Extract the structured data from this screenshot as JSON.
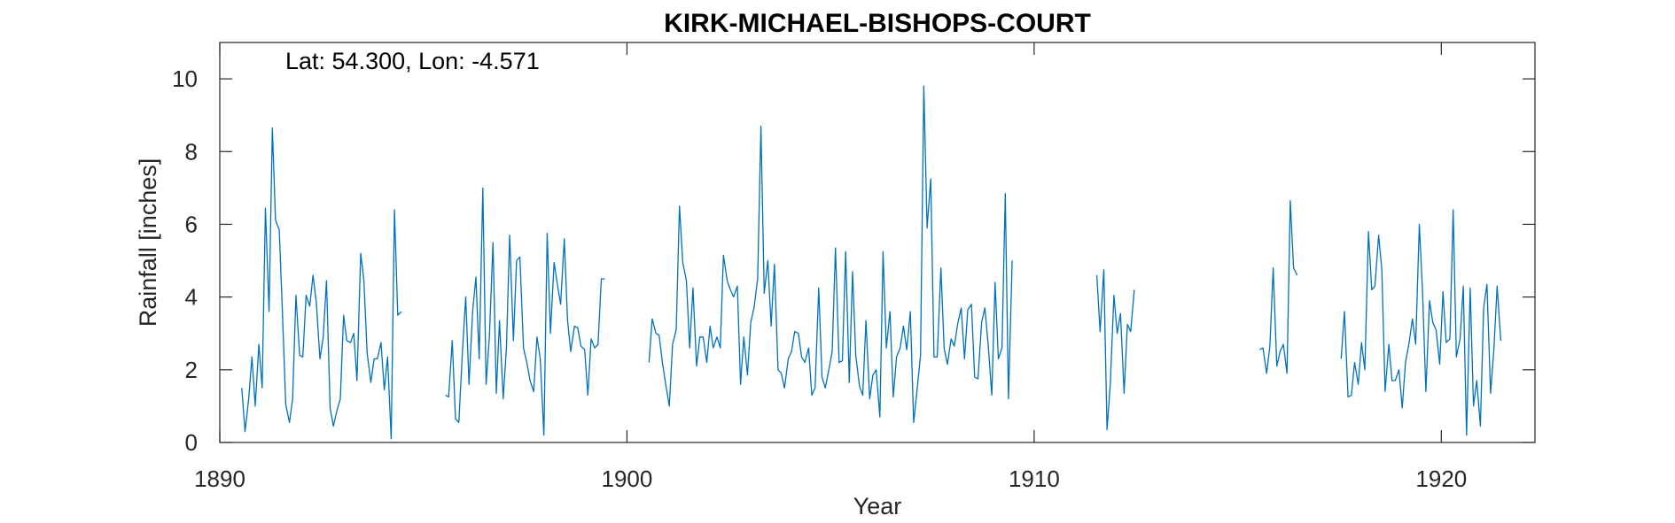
{
  "chart_data": {
    "type": "line",
    "title": "KIRK-MICHAEL-BISHOPS-COURT",
    "xlabel": "Year",
    "ylabel": "Rainfall [inches]",
    "annotation": "Lat: 54.300, Lon: -4.571",
    "xlim": [
      1890,
      1922.3
    ],
    "ylim": [
      0,
      11
    ],
    "xticks": [
      1890,
      1900,
      1910,
      1920
    ],
    "yticks": [
      0,
      2,
      4,
      6,
      8,
      10
    ],
    "grid": false,
    "series_color": "#0072BD",
    "series": [
      {
        "segments": [
          {
            "x": [
              1890.54,
              1890.62,
              1890.71,
              1890.79,
              1890.87,
              1890.96,
              1891.04,
              1891.12,
              1891.21,
              1891.29,
              1891.37,
              1891.46,
              1891.54,
              1891.62,
              1891.71,
              1891.79,
              1891.87,
              1891.96,
              1892.04,
              1892.12,
              1892.21,
              1892.29,
              1892.37,
              1892.46,
              1892.54,
              1892.62,
              1892.71,
              1892.79,
              1892.87,
              1892.96,
              1893.04,
              1893.12,
              1893.21,
              1893.29,
              1893.37,
              1893.46,
              1893.54,
              1893.62,
              1893.71,
              1893.79,
              1893.87,
              1893.96,
              1894.04,
              1894.12,
              1894.21,
              1894.29,
              1894.37,
              1894.46
            ],
            "y": [
              1.5,
              0.3,
              1.2,
              2.35,
              1.0,
              2.7,
              1.5,
              6.45,
              3.6,
              8.65,
              6.1,
              5.85,
              3.5,
              1.05,
              0.55,
              1.2,
              4.05,
              2.4,
              2.35,
              4.05,
              3.75,
              4.6,
              3.85,
              2.3,
              2.9,
              4.45,
              0.95,
              0.45,
              0.85,
              1.2,
              3.5,
              2.8,
              2.75,
              3.0,
              1.7,
              5.2,
              4.45,
              2.45,
              1.65,
              2.3,
              2.3,
              2.75,
              1.45,
              2.35,
              0.1,
              6.4,
              3.5,
              3.6
            ]
          },
          {
            "x": [
              1895.54,
              1895.62,
              1895.71,
              1895.79,
              1895.87,
              1895.96,
              1896.04,
              1896.12,
              1896.21,
              1896.29,
              1896.37,
              1896.46,
              1896.54,
              1896.62,
              1896.71,
              1896.79,
              1896.87,
              1896.96,
              1897.04,
              1897.12,
              1897.21,
              1897.29,
              1897.37,
              1897.46,
              1897.54,
              1897.62,
              1897.71,
              1897.79,
              1897.87,
              1897.96,
              1898.04,
              1898.12,
              1898.21,
              1898.29,
              1898.37,
              1898.46,
              1898.54,
              1898.62,
              1898.71,
              1898.79,
              1898.87,
              1898.96,
              1899.04,
              1899.12,
              1899.21,
              1899.29,
              1899.37,
              1899.46
            ],
            "y": [
              1.3,
              1.25,
              2.8,
              0.65,
              0.55,
              2.5,
              4.0,
              1.6,
              3.6,
              4.55,
              2.3,
              7.0,
              1.6,
              2.9,
              5.5,
              1.35,
              3.35,
              1.2,
              2.6,
              5.7,
              2.8,
              5.0,
              5.1,
              2.6,
              2.2,
              1.7,
              1.4,
              2.9,
              2.3,
              0.2,
              5.75,
              3.0,
              4.95,
              4.35,
              3.8,
              5.6,
              3.35,
              2.5,
              3.2,
              3.15,
              2.65,
              2.55,
              1.3,
              2.85,
              2.6,
              2.7,
              4.5,
              4.5
            ]
          },
          {
            "x": [
              1900.54,
              1900.62,
              1900.71,
              1900.79,
              1900.87,
              1900.96,
              1901.04,
              1901.12,
              1901.21,
              1901.29,
              1901.37,
              1901.46,
              1901.54,
              1901.62,
              1901.71,
              1901.79,
              1901.87,
              1901.96,
              1902.04,
              1902.12,
              1902.21,
              1902.29,
              1902.37,
              1902.46,
              1902.54,
              1902.62,
              1902.71,
              1902.79,
              1902.87,
              1902.96,
              1903.04,
              1903.12,
              1903.21,
              1903.29,
              1903.37,
              1903.46,
              1903.54,
              1903.62,
              1903.71,
              1903.79,
              1903.87,
              1903.96,
              1904.04,
              1904.12,
              1904.21,
              1904.29,
              1904.37,
              1904.46,
              1904.54,
              1904.62,
              1904.71,
              1904.79,
              1904.87,
              1904.96,
              1905.04,
              1905.12,
              1905.21,
              1905.29,
              1905.37,
              1905.46,
              1905.54,
              1905.62,
              1905.71,
              1905.79,
              1905.87,
              1905.96,
              1906.04,
              1906.12,
              1906.21,
              1906.29,
              1906.37,
              1906.46,
              1906.54,
              1906.62,
              1906.71,
              1906.79,
              1906.87,
              1906.96,
              1907.04,
              1907.12,
              1907.21,
              1907.29,
              1907.37,
              1907.46,
              1907.54,
              1907.62,
              1907.71,
              1907.79,
              1907.87,
              1907.96,
              1908.04,
              1908.12,
              1908.21,
              1908.29,
              1908.37,
              1908.46,
              1908.54,
              1908.62,
              1908.71,
              1908.79,
              1908.87,
              1908.96,
              1909.04,
              1909.12,
              1909.21,
              1909.29,
              1909.37,
              1909.46
            ],
            "y": [
              2.2,
              3.4,
              3.0,
              2.95,
              2.2,
              1.55,
              1.0,
              2.7,
              3.1,
              6.5,
              4.95,
              4.45,
              2.6,
              4.25,
              2.1,
              2.9,
              2.9,
              2.2,
              3.2,
              2.6,
              2.9,
              2.6,
              5.15,
              4.45,
              4.2,
              4.0,
              4.3,
              1.6,
              2.9,
              1.85,
              3.3,
              3.7,
              4.5,
              8.7,
              4.1,
              5.0,
              3.2,
              4.9,
              2.0,
              1.9,
              1.5,
              2.3,
              2.5,
              3.05,
              3.0,
              2.35,
              2.2,
              2.6,
              1.3,
              1.5,
              4.25,
              1.8,
              1.5,
              2.0,
              2.5,
              5.35,
              2.2,
              2.25,
              5.25,
              1.65,
              4.7,
              2.4,
              1.55,
              1.3,
              3.35,
              1.2,
              1.85,
              2.0,
              0.7,
              5.25,
              2.6,
              3.6,
              1.25,
              2.35,
              2.6,
              3.2,
              2.55,
              3.6,
              0.55,
              1.4,
              2.4,
              9.8,
              5.9,
              7.25,
              2.35,
              2.35,
              4.8,
              2.6,
              2.15,
              2.85,
              2.65,
              3.25,
              3.7,
              2.3,
              3.65,
              3.8,
              1.8,
              1.75,
              3.3,
              3.7,
              2.7,
              1.3,
              4.4,
              2.3,
              2.6,
              6.85,
              1.2,
              5.0
            ]
          },
          {
            "x": [
              1911.54,
              1911.62,
              1911.71,
              1911.79,
              1911.87,
              1911.96,
              1912.04,
              1912.12,
              1912.21,
              1912.29,
              1912.37,
              1912.46
            ],
            "y": [
              4.6,
              3.05,
              4.75,
              0.35,
              1.6,
              4.05,
              3.0,
              3.55,
              1.35,
              3.25,
              3.05,
              4.2
            ]
          },
          {
            "x": [
              1915.54,
              1915.62,
              1915.71,
              1915.79,
              1915.87,
              1915.96,
              1916.04,
              1916.12,
              1916.21,
              1916.29,
              1916.37,
              1916.46
            ],
            "y": [
              2.55,
              2.6,
              1.9,
              2.65,
              4.8,
              2.1,
              2.5,
              2.7,
              1.9,
              6.65,
              4.8,
              4.6
            ]
          },
          {
            "x": [
              1917.54,
              1917.62,
              1917.71,
              1917.79,
              1917.87,
              1917.96,
              1918.04,
              1918.12,
              1918.21,
              1918.29,
              1918.37,
              1918.46,
              1918.54,
              1918.62,
              1918.71,
              1918.79,
              1918.87,
              1918.96,
              1919.04,
              1919.12,
              1919.21,
              1919.29,
              1919.37,
              1919.46,
              1919.54,
              1919.62,
              1919.71,
              1919.79,
              1919.87,
              1919.96,
              1920.04,
              1920.12,
              1920.21,
              1920.29,
              1920.37,
              1920.46,
              1920.54,
              1920.62,
              1920.71,
              1920.79,
              1920.87,
              1920.96,
              1921.04,
              1921.12,
              1921.21,
              1921.29,
              1921.37,
              1921.46
            ],
            "y": [
              2.3,
              3.6,
              1.25,
              1.3,
              2.2,
              1.6,
              2.75,
              2.0,
              5.8,
              4.2,
              4.3,
              5.7,
              4.75,
              1.4,
              2.7,
              1.7,
              1.7,
              2.0,
              0.95,
              2.2,
              2.75,
              3.4,
              2.7,
              6.0,
              4.1,
              1.4,
              3.9,
              3.3,
              3.1,
              2.15,
              4.15,
              2.75,
              2.85,
              6.4,
              2.35,
              2.85,
              4.3,
              0.2,
              4.25,
              1.0,
              1.7,
              0.45,
              3.7,
              4.35,
              1.35,
              2.55,
              4.3,
              2.8
            ]
          }
        ]
      }
    ]
  }
}
